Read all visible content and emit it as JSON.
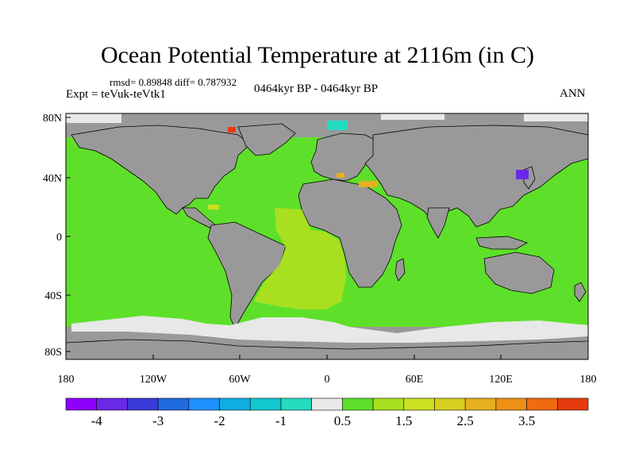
{
  "title": "Ocean Potential Temperature at 2116m (in C)",
  "stats": "rmsd= 0.89848 diff= 0.787932",
  "experiment": "Expt = teVuk-teVtk1",
  "period": "0464kyr BP - 0464kyr BP",
  "season": "ANN",
  "lat_labels": [
    "80N",
    "40N",
    "0",
    "40S",
    "80S"
  ],
  "lon_labels": [
    "180",
    "120W",
    "60W",
    "0",
    "60E",
    "120E",
    "180"
  ],
  "colorbar": {
    "colors": [
      "#8f00ff",
      "#6a28e8",
      "#3a3ad8",
      "#1f6be0",
      "#1e90ff",
      "#10aee0",
      "#0fc8d0",
      "#24dcc0",
      "#e8e8e8",
      "#5ee02a",
      "#a8e020",
      "#cce020",
      "#d8d020",
      "#e6b020",
      "#ee9015",
      "#f06a10",
      "#e83a10"
    ],
    "labels": [
      {
        "index": 1,
        "text": "-4"
      },
      {
        "index": 3,
        "text": "-3"
      },
      {
        "index": 5,
        "text": "-2"
      },
      {
        "index": 7,
        "text": "-1"
      },
      {
        "index": 9,
        "text": "0.5"
      },
      {
        "index": 11,
        "text": "1.5"
      },
      {
        "index": 13,
        "text": "2.5"
      },
      {
        "index": 15,
        "text": "3.5"
      }
    ]
  },
  "map_colors": {
    "land": "#999999",
    "ocean_main": "#5ee02a",
    "south_atlantic": "#a8e020",
    "ice_white": "#e8e8e8",
    "cyan_patch": "#24dcc0",
    "purple_patch": "#6a28e8",
    "orange_patch": "#e6b020",
    "red_patch": "#e83a10",
    "coast": "#000000"
  }
}
